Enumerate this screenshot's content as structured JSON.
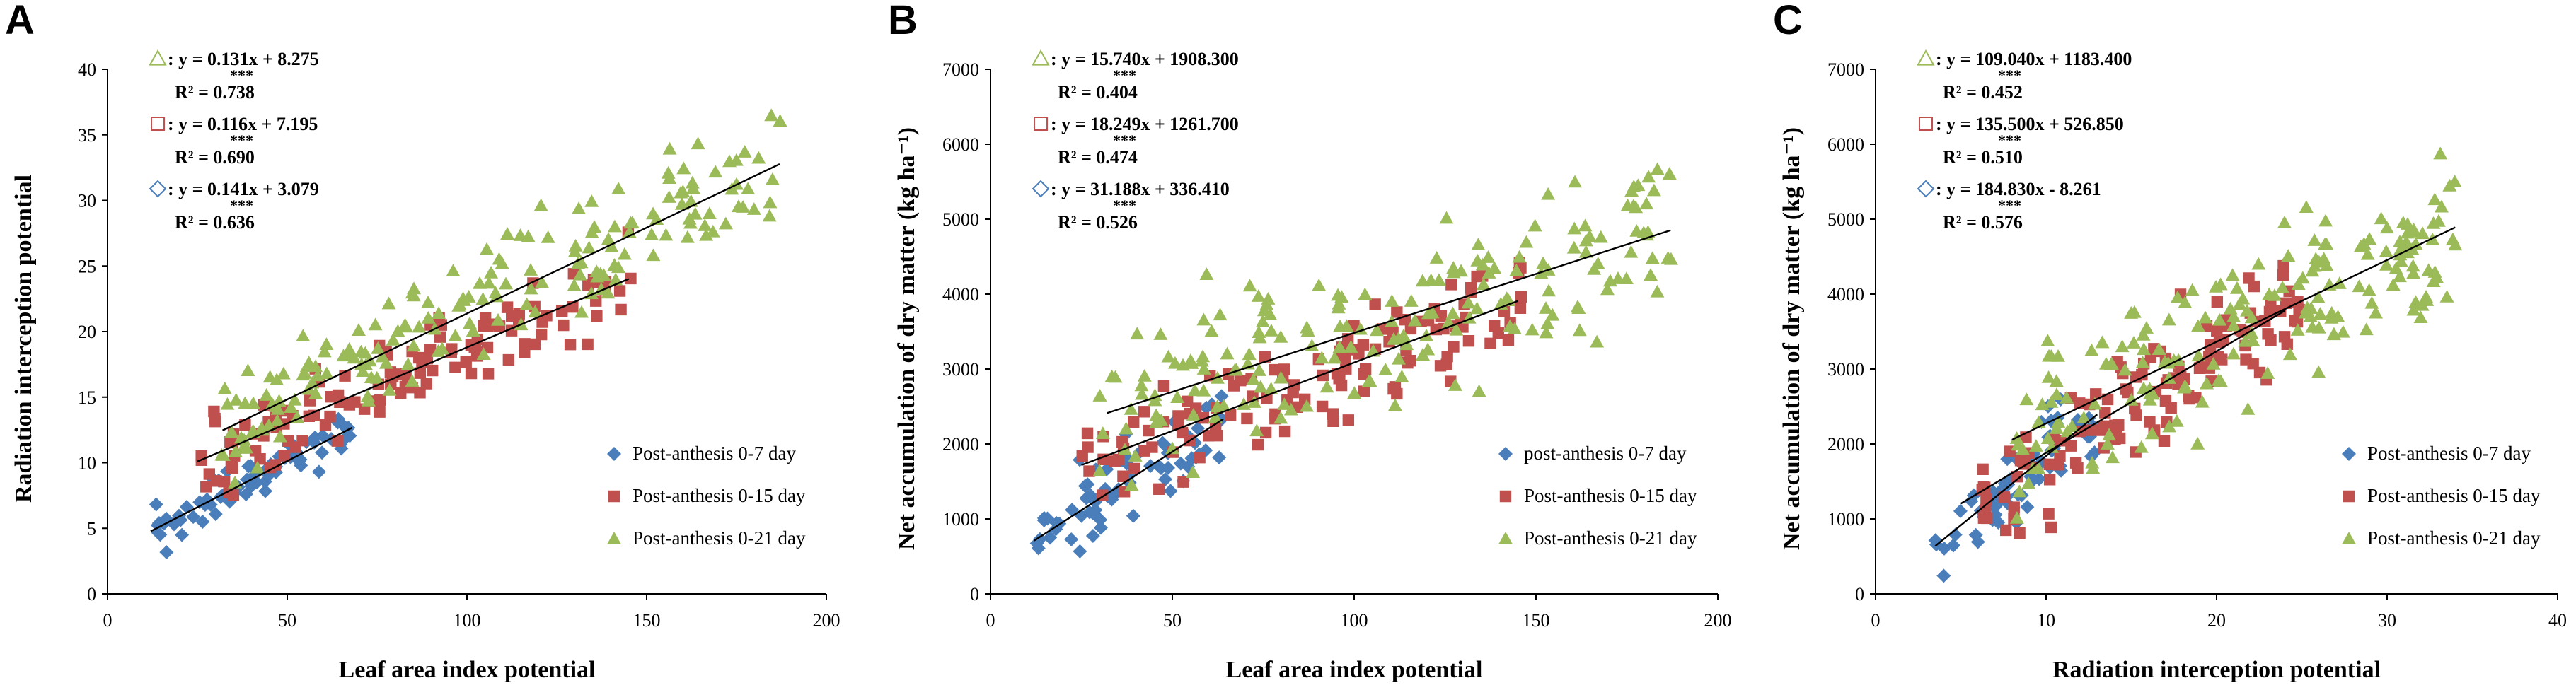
{
  "colors": {
    "series_0_7": "#4a7ebb",
    "series_0_15": "#c0504d",
    "series_0_21": "#9bbb59",
    "axis": "#000000",
    "fit_line": "#000000"
  },
  "chart_data": [
    {
      "panel": "A",
      "type": "scatter",
      "xlabel": "Leaf area index potential",
      "ylabel": "Radiation interception potential",
      "xlim": [
        0,
        200
      ],
      "ylim": [
        0,
        40
      ],
      "xticks": [
        0,
        50,
        100,
        150,
        200
      ],
      "yticks": [
        0,
        5,
        10,
        15,
        20,
        25,
        30,
        35,
        40
      ],
      "tick_decimals": 0,
      "legend": [
        "Post-anthesis 0-7 day",
        "Post-anthesis 0-15 day",
        "Post-anthesis 0-21 day"
      ],
      "equations": [
        {
          "marker": "triangle",
          "series": 2,
          "text": ": y = 0.131x + 8.275",
          "r2": "R² = 0.738",
          "sig": "***"
        },
        {
          "marker": "square",
          "series": 1,
          "text": ": y = 0.116x + 7.195",
          "r2": "R² = 0.690",
          "sig": "***"
        },
        {
          "marker": "diamond",
          "series": 0,
          "text": ": y = 0.141x + 3.079",
          "r2": "R² = 0.636",
          "sig": "***"
        }
      ],
      "fits": [
        {
          "series": 0,
          "slope": 0.141,
          "intercept": 3.079,
          "x_range": [
            12,
            68
          ]
        },
        {
          "series": 1,
          "slope": 0.116,
          "intercept": 7.195,
          "x_range": [
            25,
            145
          ]
        },
        {
          "series": 2,
          "slope": 0.131,
          "intercept": 8.275,
          "x_range": [
            32,
            187
          ]
        }
      ],
      "series": [
        {
          "name": "Post-anthesis 0-7 day",
          "marker": "diamond",
          "n": 70,
          "x_range": [
            12,
            68
          ],
          "noise": 1.4,
          "seed": 11
        },
        {
          "name": "Post-anthesis 0-15 day",
          "marker": "square",
          "n": 130,
          "x_range": [
            24,
            146
          ],
          "noise": 2.8,
          "seed": 23
        },
        {
          "name": "Post-anthesis 0-21 day",
          "marker": "triangle",
          "n": 190,
          "x_range": [
            30,
            188
          ],
          "noise": 3.4,
          "seed": 37
        }
      ]
    },
    {
      "panel": "B",
      "type": "scatter",
      "xlabel": "Leaf area index potential",
      "ylabel": "Net accumulation of dry matter (kg ha⁻¹)",
      "xlim": [
        0,
        200
      ],
      "ylim": [
        0,
        7000
      ],
      "xticks": [
        0,
        50,
        100,
        150,
        200
      ],
      "yticks": [
        0,
        1000,
        2000,
        3000,
        4000,
        5000,
        6000,
        7000
      ],
      "tick_decimals": 0,
      "legend": [
        "post-anthesis 0-7 day",
        "Post-anthesis 0-15 day",
        "Post-anthesis 0-21 day"
      ],
      "equations": [
        {
          "marker": "triangle",
          "series": 2,
          "text": ": y = 15.740x + 1908.300",
          "r2": "R² = 0.404",
          "sig": "***"
        },
        {
          "marker": "square",
          "series": 1,
          "text": ": y = 18.249x + 1261.700",
          "r2": "R² = 0.474",
          "sig": "***"
        },
        {
          "marker": "diamond",
          "series": 0,
          "text": ": y = 31.188x + 336.410",
          "r2": "R² = 0.526",
          "sig": "***"
        }
      ],
      "fits": [
        {
          "series": 0,
          "slope": 31.188,
          "intercept": 336.41,
          "x_range": [
            12,
            64
          ]
        },
        {
          "series": 1,
          "slope": 18.249,
          "intercept": 1261.7,
          "x_range": [
            25,
            145
          ]
        },
        {
          "series": 2,
          "slope": 15.74,
          "intercept": 1908.3,
          "x_range": [
            32,
            187
          ]
        }
      ],
      "series": [
        {
          "name": "post-anthesis 0-7 day",
          "marker": "diamond",
          "n": 70,
          "x_range": [
            12,
            64
          ],
          "noise": 430,
          "seed": 41
        },
        {
          "name": "Post-anthesis 0-15 day",
          "marker": "square",
          "n": 130,
          "x_range": [
            24,
            146
          ],
          "noise": 620,
          "seed": 53
        },
        {
          "name": "Post-anthesis 0-21 day",
          "marker": "triangle",
          "n": 190,
          "x_range": [
            30,
            188
          ],
          "noise": 900,
          "seed": 67
        }
      ]
    },
    {
      "panel": "C",
      "type": "scatter",
      "xlabel": "Radiation interception potential",
      "ylabel": "Net accumulation of dry matter (kg ha⁻¹)",
      "xlim": [
        0,
        40
      ],
      "ylim": [
        0,
        7000
      ],
      "xticks": [
        0,
        10,
        20,
        30,
        40
      ],
      "yticks": [
        0,
        1000,
        2000,
        3000,
        4000,
        5000,
        6000,
        7000
      ],
      "tick_decimals": 0,
      "legend": [
        "Post-anthesis 0-7 day",
        "Post-anthesis 0-15 day",
        "Post-anthesis 0-21 day"
      ],
      "equations": [
        {
          "marker": "triangle",
          "series": 2,
          "text": ": y = 109.040x + 1183.400",
          "r2": "R² = 0.452",
          "sig": "***"
        },
        {
          "marker": "square",
          "series": 1,
          "text": ": y = 135.500x + 526.850",
          "r2": "R² = 0.510",
          "sig": "***"
        },
        {
          "marker": "diamond",
          "series": 0,
          "text": ": y = 184.830x - 8.261",
          "r2": "R² = 0.576",
          "sig": "***"
        }
      ],
      "fits": [
        {
          "series": 0,
          "slope": 184.83,
          "intercept": -8.261,
          "x_range": [
            3.5,
            13
          ]
        },
        {
          "series": 1,
          "slope": 135.5,
          "intercept": 526.85,
          "x_range": [
            5,
            24
          ]
        },
        {
          "series": 2,
          "slope": 109.04,
          "intercept": 1183.4,
          "x_range": [
            8,
            34
          ]
        }
      ],
      "series": [
        {
          "name": "Post-anthesis 0-7 day",
          "marker": "diamond",
          "n": 70,
          "x_range": [
            3.5,
            13
          ],
          "noise": 420,
          "seed": 71
        },
        {
          "name": "Post-anthesis 0-15 day",
          "marker": "square",
          "n": 130,
          "x_range": [
            6,
            25
          ],
          "noise": 650,
          "seed": 83
        },
        {
          "name": "Post-anthesis 0-21 day",
          "marker": "triangle",
          "n": 190,
          "x_range": [
            8,
            34
          ],
          "noise": 850,
          "seed": 97
        }
      ]
    }
  ]
}
